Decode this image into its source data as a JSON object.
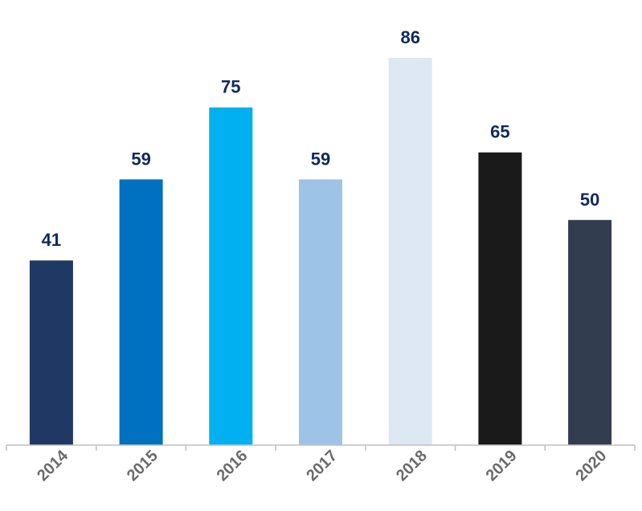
{
  "chart_data": {
    "type": "bar",
    "categories": [
      "2014",
      "2015",
      "2016",
      "2017",
      "2018",
      "2019",
      "2020"
    ],
    "values": [
      41,
      59,
      75,
      59,
      86,
      65,
      50
    ],
    "colors": [
      "#1f3864",
      "#0070c0",
      "#00b0f0",
      "#9dc3e6",
      "#dde8f4",
      "#1a1a1a",
      "#323e4f"
    ],
    "value_label_color": "#0f2a5c",
    "tick_label_color": "#6b6b6b",
    "axis_color": "#bfbfbf",
    "title": "",
    "xlabel": "",
    "ylabel": "",
    "ylim": [
      0,
      86
    ],
    "grid": false,
    "legend": "none"
  }
}
